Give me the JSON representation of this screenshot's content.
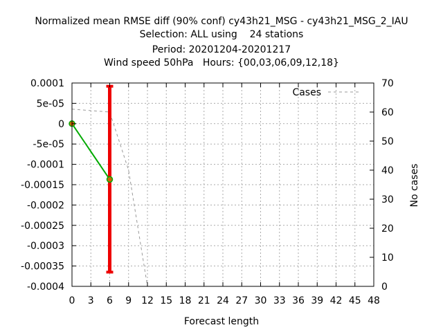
{
  "chart_data": {
    "type": "line",
    "title_lines": [
      "Normalized mean RMSE diff (90% conf) cy43h21_MSG - cy43h21_MSG_2_IAU",
      "Selection: ALL using    24 stations",
      "Period: 20201204-20201217",
      "Wind speed 50hPa   Hours: {00,03,06,09,12,18}"
    ],
    "xlabel": "Forecast length",
    "ylabel": "",
    "y2label": "No cases",
    "xlim": [
      0,
      48
    ],
    "ylim": [
      -0.0004,
      0.0001
    ],
    "y2lim": [
      0,
      70
    ],
    "grid": true,
    "x_ticks": [
      0,
      3,
      6,
      9,
      12,
      15,
      18,
      21,
      24,
      27,
      30,
      33,
      36,
      39,
      42,
      45,
      48
    ],
    "x_tick_labels": [
      "0",
      "3",
      "6",
      "9",
      "12",
      "15",
      "18",
      "21",
      "24",
      "27",
      "30",
      "33",
      "36",
      "39",
      "42",
      "45",
      "48"
    ],
    "y_ticks": [
      0.0001,
      5e-05,
      0,
      -5e-05,
      -0.0001,
      -0.00015,
      -0.0002,
      -0.00025,
      -0.0003,
      -0.00035,
      -0.0004
    ],
    "y_tick_labels": [
      "0.0001",
      "5e-05",
      "0",
      "-5e-05",
      "-0.0001",
      "-0.00015",
      "-0.0002",
      "-0.00025",
      "-0.0003",
      "-0.00035",
      "-0.0004"
    ],
    "y2_ticks": [
      0,
      10,
      20,
      30,
      40,
      50,
      60,
      70
    ],
    "y2_tick_labels": [
      "0",
      "10",
      "20",
      "30",
      "40",
      "50",
      "60",
      "70"
    ],
    "legend": {
      "label": "Cases",
      "placement": "top-right"
    },
    "series": [
      {
        "x": [
          0,
          6
        ],
        "y": [
          0,
          -0.000137
        ],
        "color": "#00aa00",
        "marker_color": "#cc6600"
      }
    ],
    "error_bars": [
      {
        "x": 6,
        "low": -0.000365,
        "high": 9.2e-05,
        "color": "#ee0000"
      }
    ],
    "cases": {
      "axis": "y2",
      "color": "#999999",
      "x": [
        0,
        6,
        9,
        12,
        48
      ],
      "y": [
        61,
        60,
        40,
        0,
        0
      ]
    }
  }
}
